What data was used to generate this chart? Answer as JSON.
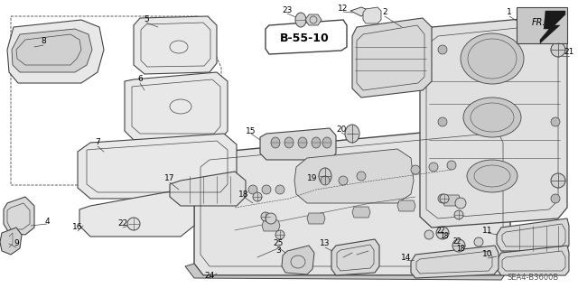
{
  "bg_color": "#ffffff",
  "diagram_code": "SEA4-B3600B",
  "reference_label": "B-55-10",
  "fr_label": "FR.",
  "lc": "#444444",
  "lw": 0.7,
  "figsize": [
    6.4,
    3.19
  ],
  "dpi": 100,
  "font_size": 6.5,
  "font_size_ref": 8.5,
  "font_size_code": 6.0
}
